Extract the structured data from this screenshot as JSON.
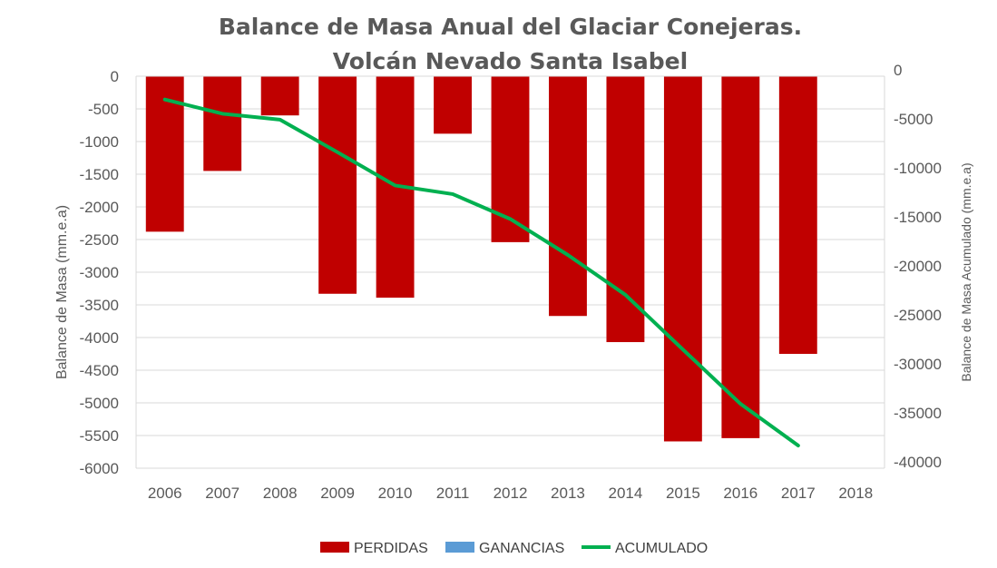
{
  "chart_data": {
    "type": "bar",
    "title_line1": "Balance de Masa Anual del Glaciar Conejeras.",
    "title_line2": "Volcán Nevado Santa Isabel",
    "categories": [
      "2006",
      "2007",
      "2008",
      "2009",
      "2010",
      "2011",
      "2012",
      "2013",
      "2014",
      "2015",
      "2016",
      "2017",
      "2018"
    ],
    "series": [
      {
        "name": "PERDIDAS",
        "type": "bar",
        "axis": "left",
        "color": "#C00000",
        "values": [
          -2380,
          -1450,
          -600,
          -3330,
          -3390,
          -880,
          -2540,
          -3670,
          -4070,
          -5590,
          -5540,
          -4250,
          null
        ]
      },
      {
        "name": "GANANCIAS",
        "type": "bar",
        "axis": "left",
        "color": "#5B9BD5",
        "values": [
          0,
          0,
          0,
          0,
          0,
          0,
          0,
          0,
          0,
          0,
          0,
          0,
          null
        ]
      },
      {
        "name": "ACUMULADO",
        "type": "line",
        "axis": "right",
        "color": "#00B050",
        "values": [
          -2380,
          -3830,
          -4430,
          -7760,
          -11150,
          -12030,
          -14570,
          -18240,
          -22310,
          -27900,
          -33440,
          -37690,
          null
        ]
      }
    ],
    "ylabel_left": "Balance de Masa (mm.e.a)",
    "ylabel_right": "Balance de Masa Acumulado (mm.e.a)",
    "ylim_left": [
      -6000,
      0
    ],
    "ylim_right": [
      -40000,
      0
    ],
    "yticks_left": [
      "0",
      "-500",
      "-1000",
      "-1500",
      "-2000",
      "-2500",
      "-3000",
      "-3500",
      "-4000",
      "-4500",
      "-5000",
      "-5500",
      "-6000"
    ],
    "yticks_right": [
      "0",
      "-5000",
      "-10000",
      "-15000",
      "-20000",
      "-25000",
      "-30000",
      "-35000",
      "-40000"
    ],
    "grid": true,
    "legend_position": "bottom"
  }
}
